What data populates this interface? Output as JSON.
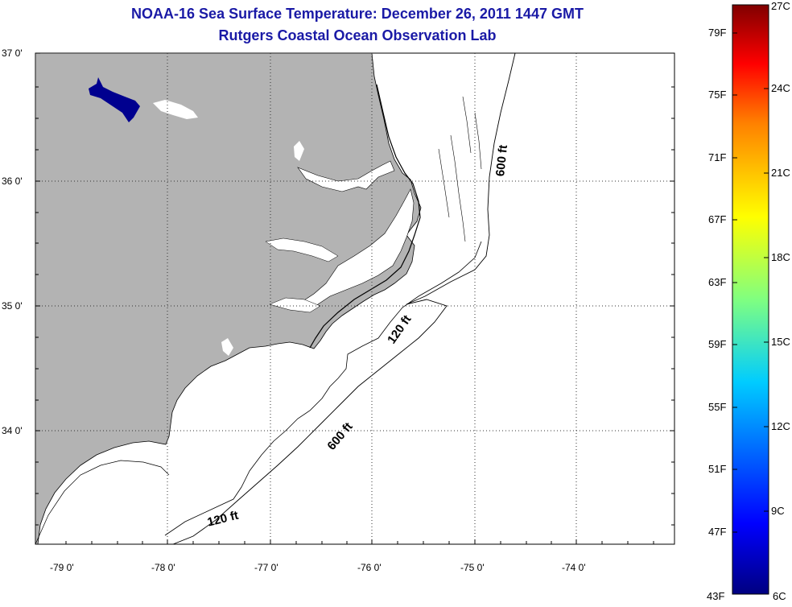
{
  "title": "NOAA-16 Sea Surface Temperature:  December 26, 2011 1447 GMT",
  "subtitle": "Rutgers Coastal Ocean Observation Lab",
  "map": {
    "lat_labels": [
      "37 0'",
      "36 0'",
      "35 0'",
      "34 0'"
    ],
    "lon_labels": [
      "-79 0'",
      "-78 0'",
      "-77 0'",
      "-76 0'",
      "-75 0'",
      "-74 0'"
    ],
    "contours": [
      {
        "label": "120 ft"
      },
      {
        "label": "600 ft"
      },
      {
        "label": "600 ft"
      },
      {
        "label": "120 ft"
      }
    ],
    "land_color": "#b3b3b3",
    "cold_sst_color": "#00008f"
  },
  "colorbar": {
    "fahrenheit_labels": [
      "79F",
      "75F",
      "71F",
      "67F",
      "63F",
      "59F",
      "55F",
      "51F",
      "47F",
      "43F"
    ],
    "celsius_labels": [
      "27C",
      "24C",
      "21C",
      "18C",
      "15C",
      "12C",
      "9C",
      "6C"
    ],
    "colors": [
      "#800000",
      "#ff0000",
      "#ff8000",
      "#ffff00",
      "#80ff80",
      "#00ffff",
      "#0080ff",
      "#0000ff",
      "#000080"
    ]
  }
}
